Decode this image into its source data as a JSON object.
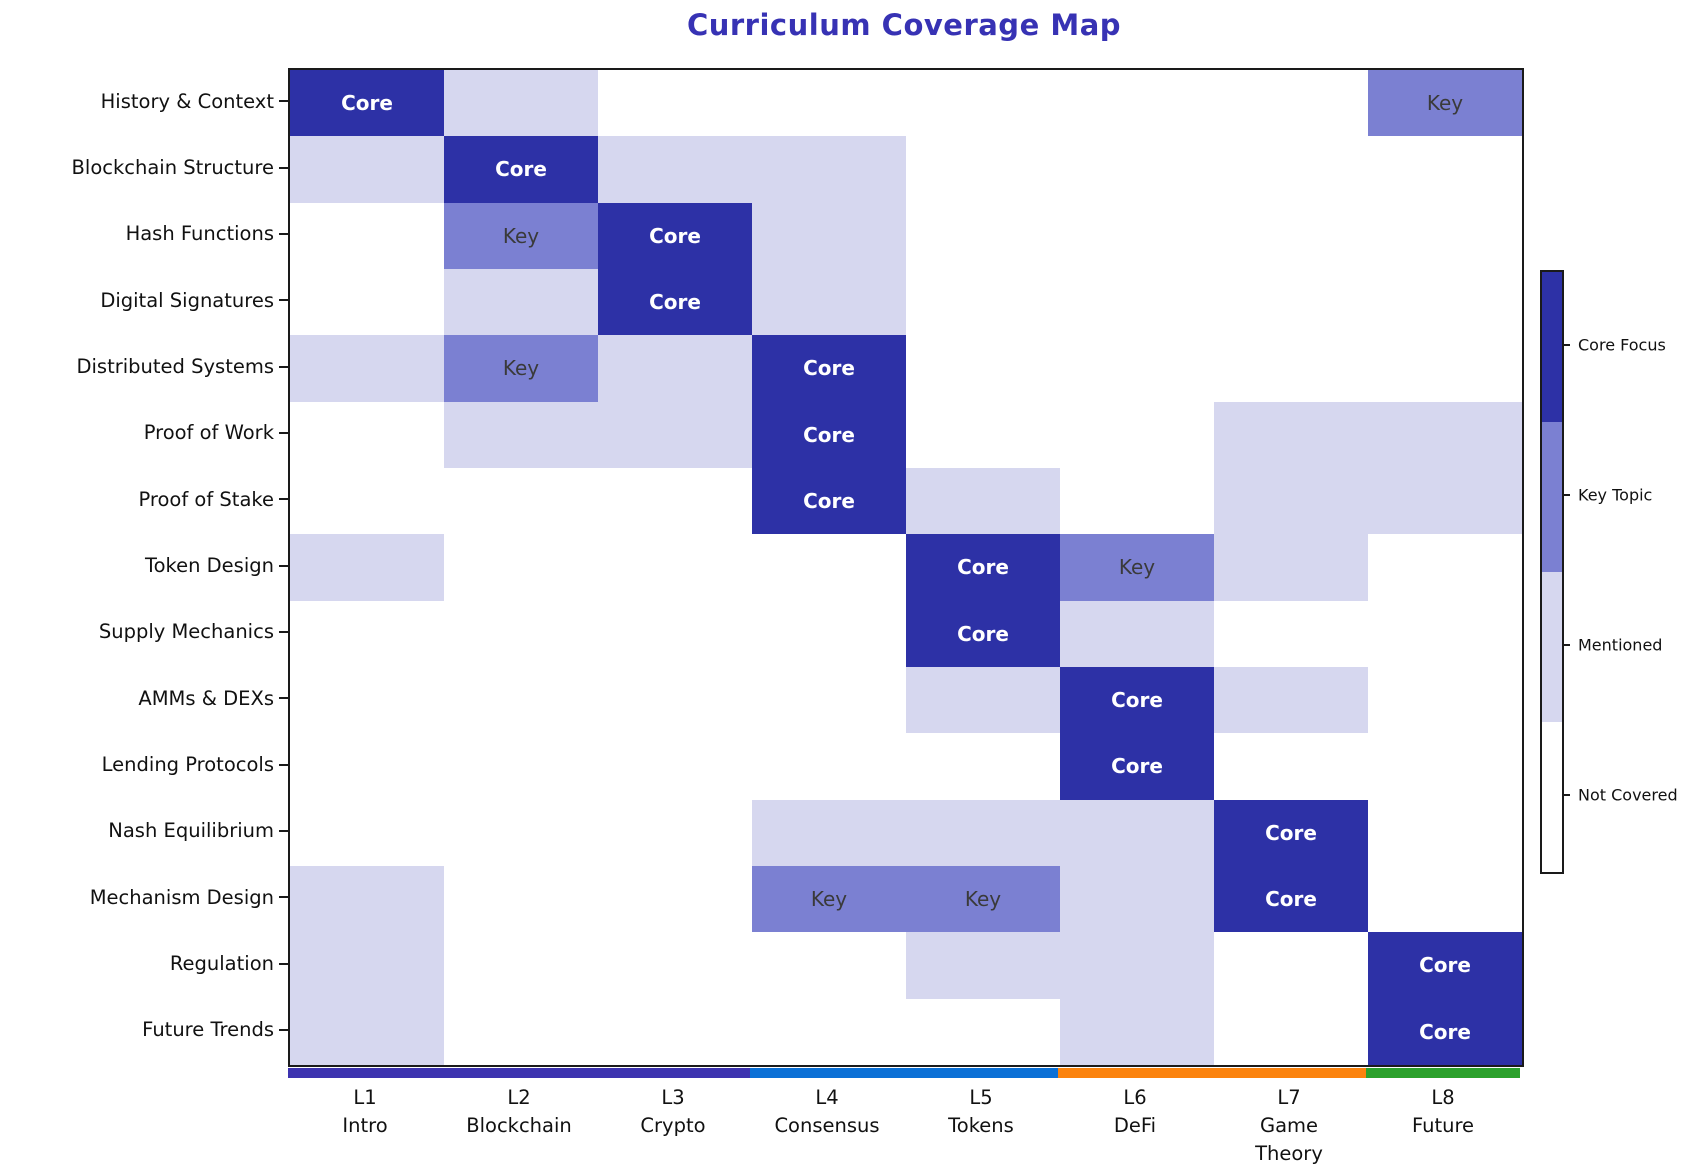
{
  "title": {
    "text": "Curriculum Coverage Map",
    "color": "#3732b4"
  },
  "chart_data": {
    "type": "heatmap",
    "rows": [
      "History & Context",
      "Blockchain Structure",
      "Hash Functions",
      "Digital Signatures",
      "Distributed Systems",
      "Proof of Work",
      "Proof of Stake",
      "Token Design",
      "Supply Mechanics",
      "AMMs & DEXs",
      "Lending Protocols",
      "Nash Equilibrium",
      "Mechanism Design",
      "Regulation",
      "Future Trends"
    ],
    "columns": [
      {
        "lines": [
          "L1",
          "Intro"
        ]
      },
      {
        "lines": [
          "L2",
          "Blockchain"
        ]
      },
      {
        "lines": [
          "L3",
          "Crypto"
        ]
      },
      {
        "lines": [
          "L4",
          "Consensus"
        ]
      },
      {
        "lines": [
          "L5",
          "Tokens"
        ]
      },
      {
        "lines": [
          "L6",
          "DeFi"
        ]
      },
      {
        "lines": [
          "L7",
          "Game",
          "Theory"
        ]
      },
      {
        "lines": [
          "L8",
          "Future"
        ]
      }
    ],
    "levels": [
      {
        "value": 0,
        "label": "Not Covered",
        "color": "#ffffff"
      },
      {
        "value": 1,
        "label": "Mentioned",
        "color": "#d6d7ef"
      },
      {
        "value": 2,
        "label": "Key Topic",
        "color": "#7b80d2"
      },
      {
        "value": 3,
        "label": "Core Focus",
        "color": "#2d31a6"
      }
    ],
    "cell_annotations": {
      "3": "Core",
      "2": "Key"
    },
    "values": [
      [
        3,
        1,
        0,
        0,
        0,
        0,
        0,
        2
      ],
      [
        1,
        3,
        1,
        1,
        0,
        0,
        0,
        0
      ],
      [
        0,
        2,
        3,
        1,
        0,
        0,
        0,
        0
      ],
      [
        0,
        1,
        3,
        1,
        0,
        0,
        0,
        0
      ],
      [
        1,
        2,
        1,
        3,
        0,
        0,
        0,
        0
      ],
      [
        0,
        1,
        1,
        3,
        0,
        0,
        1,
        1
      ],
      [
        0,
        0,
        0,
        3,
        1,
        0,
        1,
        1
      ],
      [
        1,
        0,
        0,
        0,
        3,
        2,
        1,
        0
      ],
      [
        0,
        0,
        0,
        0,
        3,
        1,
        0,
        0
      ],
      [
        0,
        0,
        0,
        0,
        1,
        3,
        1,
        0
      ],
      [
        0,
        0,
        0,
        0,
        0,
        3,
        0,
        0
      ],
      [
        0,
        0,
        0,
        1,
        1,
        1,
        3,
        0
      ],
      [
        1,
        0,
        0,
        2,
        2,
        1,
        3,
        0
      ],
      [
        1,
        0,
        0,
        0,
        1,
        1,
        0,
        3
      ],
      [
        1,
        0,
        0,
        0,
        0,
        1,
        0,
        3
      ]
    ],
    "module_strip": [
      {
        "col_span": [
          0,
          3
        ],
        "color": "#3d33b0"
      },
      {
        "col_span": [
          3,
          5
        ],
        "color": "#0b70d6"
      },
      {
        "col_span": [
          5,
          7
        ],
        "color": "#fb830e"
      },
      {
        "col_span": [
          7,
          8
        ],
        "color": "#2ca12c"
      }
    ],
    "legend_position": "right",
    "grid": "off"
  },
  "colorbar": {
    "labels_top_to_bottom": [
      "Core Focus",
      "Key Topic",
      "Mentioned",
      "Not Covered"
    ]
  }
}
